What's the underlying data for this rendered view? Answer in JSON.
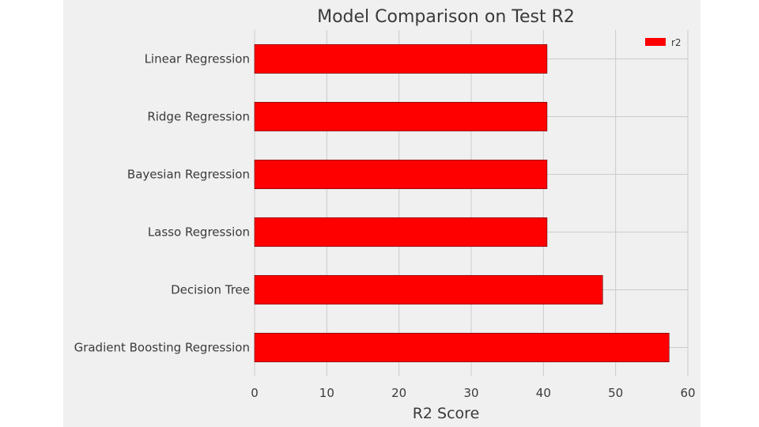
{
  "chart_data": {
    "type": "bar",
    "orientation": "horizontal",
    "title": "Model Comparison on Test R2",
    "xlabel": "R2 Score",
    "ylabel": "",
    "categories": [
      "Linear Regression",
      "Ridge Regression",
      "Bayesian Regression",
      "Lasso Regression",
      "Decision Tree",
      "Gradient Boosting Regression"
    ],
    "series": [
      {
        "name": "r2",
        "values": [
          40.5,
          40.5,
          40.5,
          40.5,
          48.2,
          57.4
        ],
        "color": "#ff0000"
      }
    ],
    "xlim": [
      0,
      60
    ],
    "xticks": [
      0,
      10,
      20,
      30,
      40,
      50,
      60
    ],
    "grid": true,
    "legend": "top-right",
    "background": "#f0f0f0",
    "grid_color": "#cbcbcb"
  }
}
